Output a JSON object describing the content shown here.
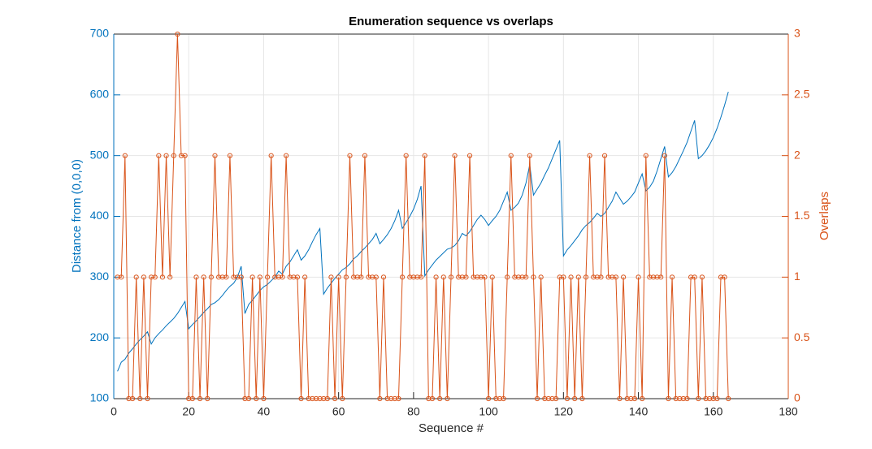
{
  "chart_data": {
    "type": "line",
    "title": "Enumeration sequence vs overlaps",
    "xlabel": "Sequence #",
    "ylabel": "Distance from (0,0,0)",
    "y2label": "Overlaps",
    "grid": true,
    "xlim": [
      0,
      180
    ],
    "xticks": [
      0,
      20,
      40,
      60,
      80,
      100,
      120,
      140,
      160,
      180
    ],
    "ylim": [
      100,
      700
    ],
    "yticks": [
      100,
      200,
      300,
      400,
      500,
      600,
      700
    ],
    "y2lim": [
      0,
      3
    ],
    "y2ticks": [
      0,
      0.5,
      1,
      1.5,
      2,
      2.5,
      3
    ],
    "x": [
      1,
      2,
      3,
      4,
      5,
      6,
      7,
      8,
      9,
      10,
      11,
      12,
      13,
      14,
      15,
      16,
      17,
      18,
      19,
      20,
      21,
      22,
      23,
      24,
      25,
      26,
      27,
      28,
      29,
      30,
      31,
      32,
      33,
      34,
      35,
      36,
      37,
      38,
      39,
      40,
      41,
      42,
      43,
      44,
      45,
      46,
      47,
      48,
      49,
      50,
      51,
      52,
      53,
      54,
      55,
      56,
      57,
      58,
      59,
      60,
      61,
      62,
      63,
      64,
      65,
      66,
      67,
      68,
      69,
      70,
      71,
      72,
      73,
      74,
      75,
      76,
      77,
      78,
      79,
      80,
      81,
      82,
      83,
      84,
      85,
      86,
      87,
      88,
      89,
      90,
      91,
      92,
      93,
      94,
      95,
      96,
      97,
      98,
      99,
      100,
      101,
      102,
      103,
      104,
      105,
      106,
      107,
      108,
      109,
      110,
      111,
      112,
      113,
      114,
      115,
      116,
      117,
      118,
      119,
      120,
      121,
      122,
      123,
      124,
      125,
      126,
      127,
      128,
      129,
      130,
      131,
      132,
      133,
      134,
      135,
      136,
      137,
      138,
      139,
      140,
      141,
      142,
      143,
      144,
      145,
      146,
      147,
      148,
      149,
      150,
      151,
      152,
      153,
      154,
      155,
      156,
      157,
      158,
      159,
      160,
      161,
      162,
      163,
      164
    ],
    "series": [
      {
        "color": "#0072BD",
        "values": [
          145,
          160,
          165,
          175,
          182,
          190,
          197,
          203,
          210,
          190,
          200,
          207,
          213,
          220,
          226,
          232,
          240,
          250,
          260,
          215,
          222,
          228,
          235,
          242,
          248,
          255,
          258,
          263,
          270,
          278,
          285,
          290,
          300,
          318,
          240,
          255,
          262,
          270,
          278,
          284,
          288,
          294,
          300,
          310,
          305,
          318,
          325,
          335,
          345,
          328,
          335,
          345,
          358,
          370,
          380,
          272,
          282,
          290,
          298,
          305,
          312,
          316,
          322,
          330,
          335,
          342,
          348,
          355,
          362,
          372,
          355,
          362,
          370,
          380,
          393,
          410,
          380,
          390,
          400,
          412,
          428,
          450,
          302,
          312,
          320,
          328,
          334,
          340,
          346,
          348,
          352,
          360,
          372,
          368,
          375,
          385,
          395,
          402,
          395,
          385,
          393,
          400,
          410,
          425,
          440,
          410,
          415,
          422,
          435,
          455,
          485,
          435,
          445,
          455,
          468,
          480,
          495,
          510,
          525,
          335,
          345,
          352,
          360,
          368,
          378,
          385,
          390,
          397,
          405,
          400,
          405,
          415,
          425,
          440,
          430,
          420,
          425,
          432,
          440,
          455,
          470,
          442,
          448,
          458,
          475,
          495,
          515,
          465,
          472,
          482,
          495,
          508,
          522,
          540,
          558,
          495,
          500,
          508,
          518,
          530,
          545,
          563,
          583,
          605
        ]
      },
      {
        "color": "#D95319",
        "axis": "y2",
        "values": [
          1,
          1,
          2,
          0,
          0,
          1,
          0,
          1,
          0,
          1,
          1,
          2,
          1,
          2,
          1,
          2,
          3,
          2,
          2,
          0,
          0,
          1,
          0,
          1,
          0,
          1,
          2,
          1,
          1,
          1,
          2,
          1,
          1,
          1,
          0,
          0,
          1,
          0,
          1,
          0,
          1,
          2,
          1,
          1,
          1,
          2,
          1,
          1,
          1,
          0,
          1,
          0,
          0,
          0,
          0,
          0,
          0,
          1,
          0,
          1,
          0,
          1,
          2,
          1,
          1,
          1,
          2,
          1,
          1,
          1,
          0,
          1,
          0,
          0,
          0,
          0,
          1,
          2,
          1,
          1,
          1,
          1,
          2,
          0,
          0,
          1,
          0,
          1,
          0,
          1,
          2,
          1,
          1,
          1,
          2,
          1,
          1,
          1,
          1,
          0,
          1,
          0,
          0,
          0,
          1,
          2,
          1,
          1,
          1,
          1,
          2,
          1,
          0,
          1,
          0,
          0,
          0,
          0,
          1,
          1,
          0,
          1,
          0,
          1,
          0,
          1,
          2,
          1,
          1,
          1,
          2,
          1,
          1,
          1,
          0,
          1,
          0,
          0,
          0,
          1,
          0,
          2,
          1,
          1,
          1,
          1,
          2,
          0,
          1,
          0,
          0,
          0,
          0,
          1,
          1,
          0,
          1,
          0,
          0,
          0,
          0,
          1,
          1,
          0
        ]
      }
    ]
  }
}
